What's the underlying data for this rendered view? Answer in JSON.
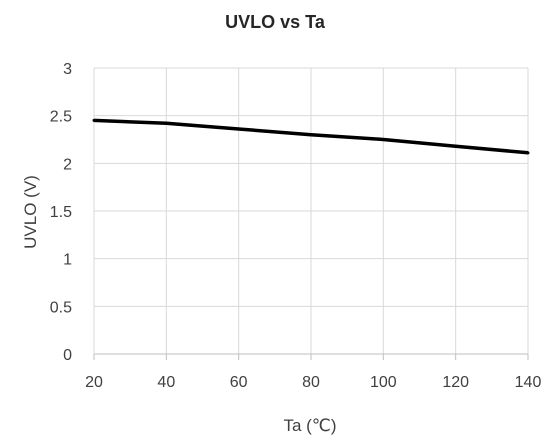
{
  "chart_data": {
    "type": "line",
    "title": "UVLO vs Ta",
    "xlabel": "Ta (℃)",
    "ylabel": "UVLO (V)",
    "xlim": [
      20,
      140
    ],
    "ylim": [
      0,
      3
    ],
    "x_ticks": [
      "20",
      "40",
      "60",
      "80",
      "100",
      "120",
      "140"
    ],
    "y_ticks": [
      "0",
      "0.5",
      "1",
      "1.5",
      "2",
      "2.5",
      "3"
    ],
    "grid": true,
    "series": [
      {
        "color": "#000000",
        "x": [
          20,
          40,
          60,
          80,
          100,
          120,
          140
        ],
        "y": [
          2.45,
          2.42,
          2.36,
          2.3,
          2.25,
          2.18,
          2.11
        ]
      }
    ]
  }
}
